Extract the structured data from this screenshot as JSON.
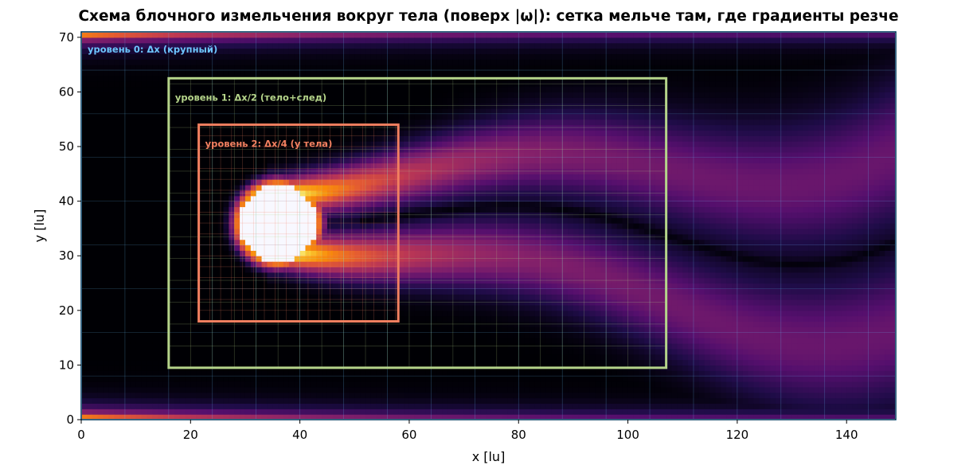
{
  "chart_data": {
    "type": "heatmap",
    "title": "Схема блочного измельчения вокруг тела (поверх |ω|): сетка мельче там, где градиенты резче",
    "xlabel": "x [lu]",
    "ylabel": "y [lu]",
    "xlim": [
      0,
      149
    ],
    "ylim": [
      0,
      71
    ],
    "xticks": [
      "0",
      "20",
      "40",
      "60",
      "80",
      "100",
      "120",
      "140"
    ],
    "yticks": [
      "0",
      "10",
      "20",
      "30",
      "40",
      "50",
      "60",
      "70"
    ],
    "colormap": "inferno",
    "body": {
      "shape": "circle",
      "cx": 36,
      "cy": 36,
      "r": 7
    },
    "levels": [
      {
        "label": "уровень 0: Δx (крупный)",
        "x0": 0,
        "x1": 149,
        "y0": 0,
        "y1": 71,
        "color": "#6ec6ff",
        "grid_step": 8
      },
      {
        "label": "уровень 1: Δx/2 (тело+след)",
        "x0": 16,
        "x1": 107,
        "y0": 9.5,
        "y1": 62.5,
        "color": "#b5d48a",
        "grid_step": 4
      },
      {
        "label": "уровень 2: Δx/4 (у тела)",
        "x0": 21.5,
        "x1": 58,
        "y0": 18,
        "y1": 54,
        "color": "#f28060",
        "grid_step": 2
      }
    ]
  }
}
